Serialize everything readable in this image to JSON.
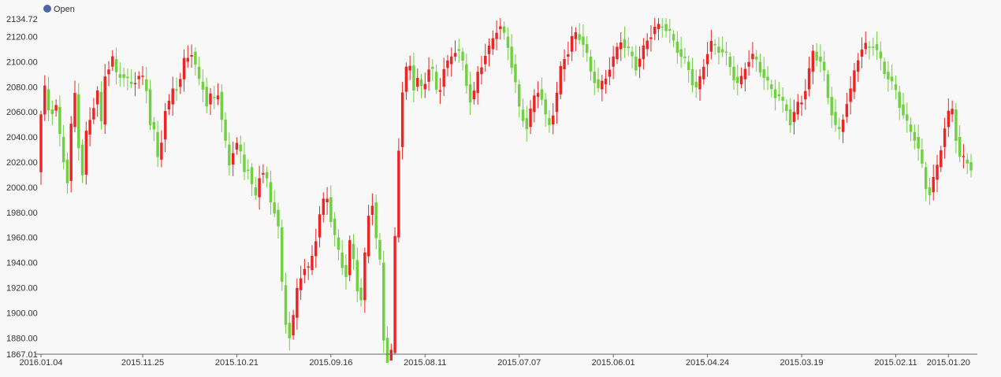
{
  "chart_data": {
    "type": "candlestick",
    "legend": {
      "label": "Open",
      "color": "#4b68a6",
      "position": "top-left"
    },
    "y_axis": {
      "min": 1867.01,
      "max": 2134.72,
      "min_label": "1867.01",
      "max_label": "2134.72",
      "ticks": [
        "1880.00",
        "1900.00",
        "1920.00",
        "1940.00",
        "1960.00",
        "1980.00",
        "2000.00",
        "2020.00",
        "2040.00",
        "2060.00",
        "2080.00",
        "2100.00",
        "2120.00"
      ]
    },
    "x_axis": {
      "direction": "newest-left",
      "tick_labels": [
        {
          "label": "2016.01.04",
          "index": 0
        },
        {
          "label": "2015.11.25",
          "index": 27
        },
        {
          "label": "2015.10.21",
          "index": 52
        },
        {
          "label": "2015.09.16",
          "index": 77
        },
        {
          "label": "2015.08.11",
          "index": 102
        },
        {
          "label": "2015.07.07",
          "index": 127
        },
        {
          "label": "2015.06.01",
          "index": 152
        },
        {
          "label": "2015.04.24",
          "index": 177
        },
        {
          "label": "2015.03.19",
          "index": 202
        },
        {
          "label": "2015.02.11",
          "index": 227
        },
        {
          "label": "2015.01.20",
          "index": 241
        }
      ]
    },
    "colors": {
      "up": "#6fd13f",
      "down": "#ee2323",
      "grid": "#e6e6e6",
      "axis": "#666666"
    },
    "grid": false,
    "closes": [
      2012,
      2058,
      2078,
      2062,
      2061,
      2064,
      2040,
      2022,
      2005,
      2048,
      2074,
      2034,
      2010,
      2042,
      2054,
      2066,
      2076,
      2050,
      2090,
      2096,
      2102,
      2090,
      2090,
      2088,
      2084,
      2082,
      2086,
      2088,
      2086,
      2078,
      2052,
      2044,
      2022,
      2038,
      2062,
      2066,
      2078,
      2080,
      2086,
      2100,
      2104,
      2108,
      2096,
      2084,
      2080,
      2066,
      2072,
      2070,
      2076,
      2054,
      2034,
      2018,
      2030,
      2034,
      2026,
      2014,
      2016,
      2000,
      1992,
      2010,
      2012,
      2004,
      1988,
      1982,
      1968,
      1922,
      1892,
      1882,
      1896,
      1918,
      1930,
      1936,
      1934,
      1945,
      1960,
      1978,
      1988,
      1992,
      1975,
      1960,
      1948,
      1938,
      1930,
      1955,
      1942,
      1920,
      1910,
      1945,
      1978,
      1988,
      1958,
      1940,
      1880,
      1862,
      1868,
      1960,
      2032,
      2076,
      2093,
      2097,
      2080,
      2086,
      2078,
      2084,
      2096,
      2092,
      2076,
      2080,
      2095,
      2098,
      2104,
      2110,
      2108,
      2098,
      2082,
      2070,
      2075,
      2090,
      2098,
      2106,
      2110,
      2118,
      2126,
      2128,
      2120,
      2112,
      2098,
      2082,
      2062,
      2055,
      2048,
      2060,
      2072,
      2078,
      2070,
      2055,
      2050,
      2060,
      2074,
      2094,
      2104,
      2108,
      2118,
      2122,
      2120,
      2114,
      2104,
      2092,
      2086,
      2078,
      2082,
      2088,
      2096,
      2102,
      2110,
      2118,
      2112,
      2108,
      2104,
      2096,
      2102,
      2110,
      2118,
      2122,
      2126,
      2128,
      2130,
      2126,
      2122,
      2116,
      2110,
      2104,
      2100,
      2094,
      2084,
      2078,
      2086,
      2098,
      2108,
      2114,
      2112,
      2110,
      2108,
      2104,
      2096,
      2088,
      2082,
      2086,
      2096,
      2102,
      2104,
      2100,
      2094,
      2088,
      2082,
      2078,
      2074,
      2072,
      2066,
      2062,
      2052,
      2058,
      2066,
      2070,
      2078,
      2092,
      2108,
      2104,
      2100,
      2090,
      2072,
      2060,
      2048,
      2044,
      2056,
      2068,
      2076,
      2092,
      2104,
      2110,
      2112,
      2112,
      2114,
      2108,
      2100,
      2092,
      2088,
      2082,
      2076,
      2066,
      2058,
      2050,
      2044,
      2040,
      2030,
      2016,
      2000,
      1996,
      2006,
      2016,
      2032,
      2048,
      2058,
      2062,
      2040,
      2024,
      2022,
      2020
    ]
  }
}
